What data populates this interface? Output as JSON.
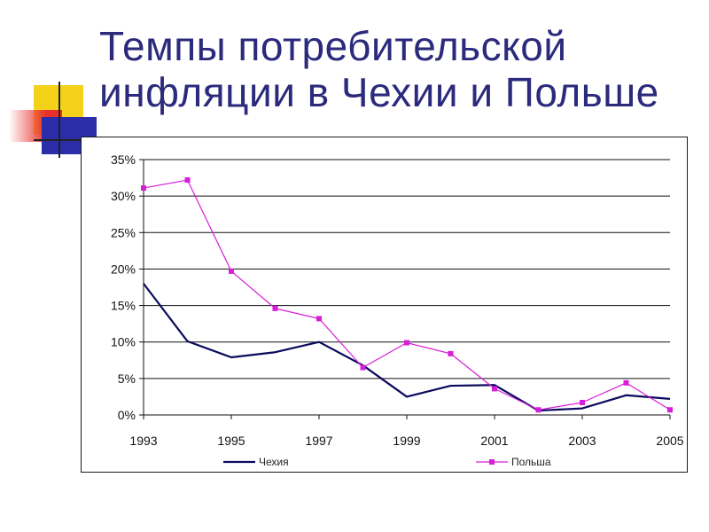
{
  "slide": {
    "title": "Темпы потребительской инфляции в Чехии и Польше"
  },
  "chart_data": {
    "type": "line",
    "x": [
      1993,
      1994,
      1995,
      1996,
      1997,
      1998,
      1999,
      2000,
      2001,
      2002,
      2003,
      2004,
      2005
    ],
    "x_tick_labels": [
      "1993",
      "1995",
      "1997",
      "1999",
      "2001",
      "2003",
      "2005"
    ],
    "y_tick_labels": [
      "0%",
      "5%",
      "10%",
      "15%",
      "20%",
      "25%",
      "30%",
      "35%"
    ],
    "ylim": [
      0,
      35
    ],
    "y_unit": "%",
    "grid": "horizontal",
    "legend_position": "bottom",
    "series": [
      {
        "name": "Чехия",
        "color": "#0a0a5e",
        "marker": "none",
        "values": [
          18.0,
          10.1,
          7.9,
          8.6,
          10.0,
          6.8,
          2.5,
          4.0,
          4.1,
          0.6,
          0.9,
          2.7,
          2.2
        ]
      },
      {
        "name": "Польша",
        "color": "#d81dd8",
        "marker": "square",
        "values": [
          31.1,
          32.2,
          19.7,
          14.6,
          13.2,
          6.5,
          9.9,
          8.4,
          3.6,
          0.7,
          1.7,
          4.4,
          0.7
        ]
      }
    ]
  }
}
